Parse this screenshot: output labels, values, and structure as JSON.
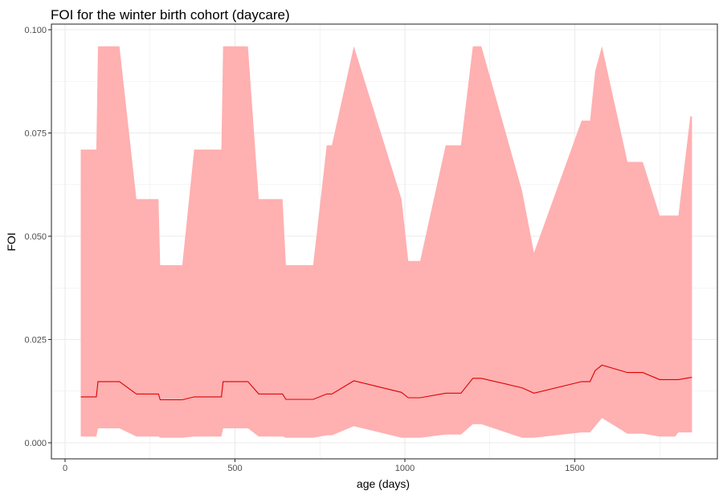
{
  "chart_data": {
    "type": "area",
    "title": "FOI for the winter birth cohort (daycare)",
    "xlabel": "age (days)",
    "ylabel": "FOI",
    "xlim": [
      0,
      1870
    ],
    "ylim": [
      0,
      0.1
    ],
    "x_ticks": [
      0,
      500,
      1000,
      1500
    ],
    "x_tick_labels": [
      "0",
      "500",
      "1000",
      "1500"
    ],
    "y_ticks": [
      0,
      0.025,
      0.05,
      0.075,
      0.1
    ],
    "y_tick_labels": [
      "0.000",
      "0.025",
      "0.050",
      "0.075",
      "0.100"
    ],
    "grid": true,
    "colors": {
      "ribbon": "#ffb0b1",
      "line": "#dd0000",
      "panel_border": "#333333",
      "grid": "#ebebeb"
    },
    "ribbon": {
      "x": [
        46,
        92,
        97,
        160,
        210,
        275,
        280,
        345,
        380,
        460,
        465,
        538,
        570,
        640,
        650,
        730,
        770,
        785,
        850,
        990,
        1010,
        1045,
        1120,
        1165,
        1200,
        1225,
        1345,
        1380,
        1520,
        1545,
        1560,
        1580,
        1655,
        1700,
        1750,
        1795,
        1805,
        1840,
        1845
      ],
      "upper": [
        0.071,
        0.071,
        0.096,
        0.096,
        0.059,
        0.059,
        0.043,
        0.043,
        0.071,
        0.071,
        0.096,
        0.096,
        0.059,
        0.059,
        0.043,
        0.043,
        0.072,
        0.072,
        0.096,
        0.059,
        0.044,
        0.044,
        0.072,
        0.072,
        0.096,
        0.096,
        0.061,
        0.046,
        0.078,
        0.078,
        0.09,
        0.096,
        0.068,
        0.068,
        0.055,
        0.055,
        0.055,
        0.079,
        0.079
      ],
      "lower": [
        0.0015,
        0.0015,
        0.0035,
        0.0035,
        0.0015,
        0.0015,
        0.0012,
        0.0012,
        0.0015,
        0.0015,
        0.0035,
        0.0035,
        0.0015,
        0.0015,
        0.0012,
        0.0012,
        0.0018,
        0.0018,
        0.004,
        0.0012,
        0.0012,
        0.0012,
        0.002,
        0.002,
        0.0045,
        0.0045,
        0.0012,
        0.0012,
        0.0025,
        0.0025,
        0.004,
        0.006,
        0.0022,
        0.0022,
        0.0015,
        0.0015,
        0.0025,
        0.0025,
        0.0025
      ]
    },
    "series": [
      {
        "x": [
          46,
          92,
          97,
          160,
          210,
          275,
          280,
          345,
          380,
          460,
          465,
          538,
          570,
          640,
          650,
          730,
          770,
          785,
          850,
          990,
          1010,
          1045,
          1120,
          1165,
          1200,
          1225,
          1345,
          1380,
          1520,
          1545,
          1560,
          1580,
          1655,
          1700,
          1750,
          1795,
          1805,
          1840,
          1845
        ],
        "values": [
          0.0111,
          0.0111,
          0.0148,
          0.0148,
          0.0118,
          0.0118,
          0.0104,
          0.0104,
          0.0111,
          0.0111,
          0.0148,
          0.0148,
          0.0118,
          0.0118,
          0.0105,
          0.0105,
          0.0118,
          0.0118,
          0.015,
          0.0122,
          0.0109,
          0.0109,
          0.012,
          0.012,
          0.0156,
          0.0156,
          0.0133,
          0.012,
          0.0148,
          0.0148,
          0.0175,
          0.0188,
          0.017,
          0.017,
          0.0153,
          0.0153,
          0.0153,
          0.0158,
          0.0158
        ]
      }
    ]
  }
}
